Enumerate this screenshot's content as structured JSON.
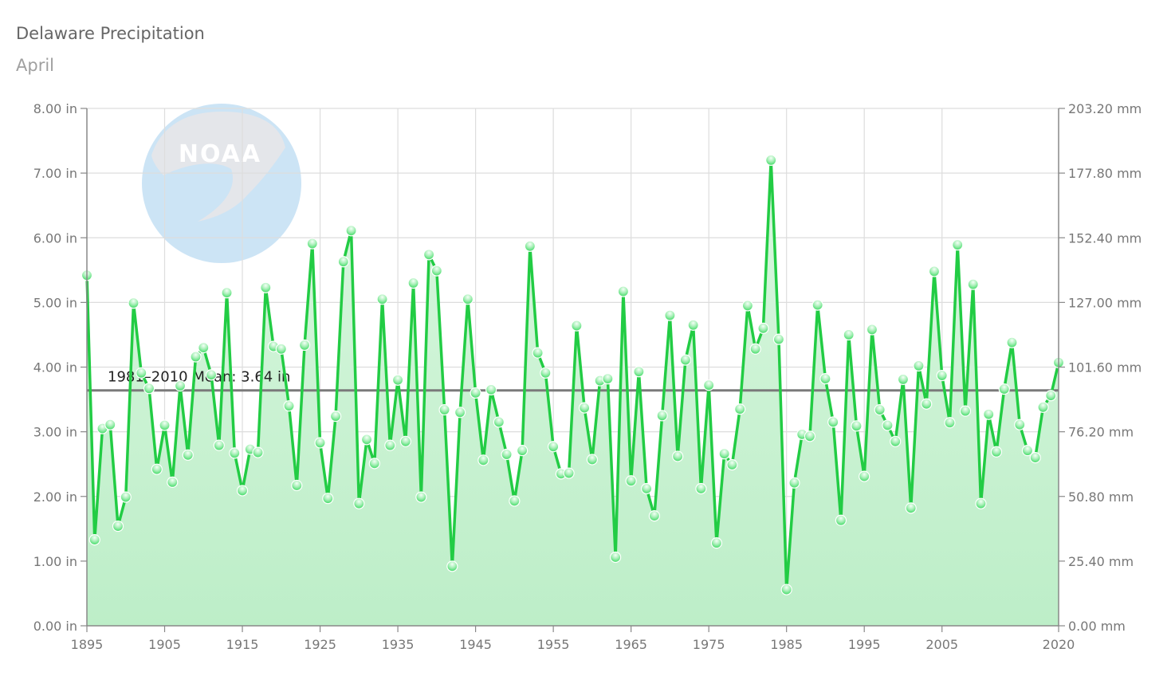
{
  "title": "Delaware Precipitation",
  "subtitle": "April",
  "colors": {
    "line": "#22cc44",
    "area_top": "#d9f7df",
    "area_bottom": "#bdeec8",
    "mean_line": "#7a7a7a",
    "grid": "#dddddd",
    "axis": "#888888",
    "marker_light": "#f4fff6",
    "marker_dark": "#2ed857"
  },
  "chart_data": {
    "type": "area",
    "x_start": 1895,
    "x_end": 2020,
    "x_ticks": [
      1895,
      1905,
      1915,
      1925,
      1935,
      1945,
      1955,
      1965,
      1975,
      1985,
      1995,
      2005,
      2020
    ],
    "y_left_ticks": [
      "0.00 in",
      "1.00 in",
      "2.00 in",
      "3.00 in",
      "4.00 in",
      "5.00 in",
      "6.00 in",
      "7.00 in",
      "8.00 in"
    ],
    "y_right_ticks": [
      "0.00 mm",
      "25.40 mm",
      "50.80 mm",
      "76.20 mm",
      "101.60 mm",
      "127.00 mm",
      "152.40 mm",
      "177.80 mm",
      "203.20 mm"
    ],
    "ylim": [
      0,
      8
    ],
    "grid": true,
    "legend": "none",
    "mean": {
      "value": 3.64,
      "label": "1981–2010 Mean: 3.64 in"
    },
    "x": [
      1895,
      1896,
      1897,
      1898,
      1899,
      1900,
      1901,
      1902,
      1903,
      1904,
      1905,
      1906,
      1907,
      1908,
      1909,
      1910,
      1911,
      1912,
      1913,
      1914,
      1915,
      1916,
      1917,
      1918,
      1919,
      1920,
      1921,
      1922,
      1923,
      1924,
      1925,
      1926,
      1927,
      1928,
      1929,
      1930,
      1931,
      1932,
      1933,
      1934,
      1935,
      1936,
      1937,
      1938,
      1939,
      1940,
      1941,
      1942,
      1943,
      1944,
      1945,
      1946,
      1947,
      1948,
      1949,
      1950,
      1951,
      1952,
      1953,
      1954,
      1955,
      1956,
      1957,
      1958,
      1959,
      1960,
      1961,
      1962,
      1963,
      1964,
      1965,
      1966,
      1967,
      1968,
      1969,
      1970,
      1971,
      1972,
      1973,
      1974,
      1975,
      1976,
      1977,
      1978,
      1979,
      1980,
      1981,
      1982,
      1983,
      1984,
      1985,
      1986,
      1987,
      1988,
      1989,
      1990,
      1991,
      1992,
      1993,
      1994,
      1995,
      1996,
      1997,
      1998,
      1999,
      2000,
      2001,
      2002,
      2003,
      2004,
      2005,
      2006,
      2007,
      2008,
      2009,
      2010,
      2011,
      2012,
      2013,
      2014,
      2015,
      2016,
      2017,
      2018,
      2019,
      2020
    ],
    "values": [
      5.42,
      1.33,
      3.05,
      3.11,
      1.54,
      1.99,
      4.99,
      3.91,
      3.67,
      2.42,
      3.1,
      2.22,
      3.71,
      2.64,
      4.16,
      4.3,
      3.88,
      2.79,
      5.15,
      2.67,
      2.09,
      2.73,
      2.68,
      5.23,
      4.32,
      4.28,
      3.4,
      2.17,
      4.34,
      5.91,
      2.83,
      1.97,
      3.24,
      5.63,
      6.11,
      1.89,
      2.88,
      2.51,
      5.05,
      2.79,
      3.8,
      2.85,
      5.3,
      1.99,
      5.74,
      5.49,
      3.34,
      0.92,
      3.3,
      5.05,
      3.6,
      2.56,
      3.65,
      3.15,
      2.65,
      1.93,
      2.71,
      5.87,
      4.22,
      3.91,
      2.77,
      2.35,
      2.36,
      4.64,
      3.37,
      2.57,
      3.79,
      3.82,
      1.06,
      5.17,
      2.24,
      3.93,
      2.12,
      1.7,
      3.25,
      4.8,
      2.62,
      4.11,
      4.65,
      2.12,
      3.72,
      1.28,
      2.66,
      2.49,
      3.35,
      4.95,
      4.28,
      4.6,
      7.2,
      4.43,
      0.56,
      2.21,
      2.96,
      2.93,
      4.96,
      3.82,
      3.15,
      1.63,
      4.5,
      3.09,
      2.31,
      4.58,
      3.34,
      3.1,
      2.85,
      3.81,
      1.82,
      4.02,
      3.43,
      5.48,
      3.87,
      3.14,
      5.89,
      3.32,
      5.28,
      1.89,
      3.27,
      2.69,
      3.66,
      4.38,
      3.11,
      2.71,
      2.6,
      3.38,
      3.56,
      4.07
    ]
  }
}
